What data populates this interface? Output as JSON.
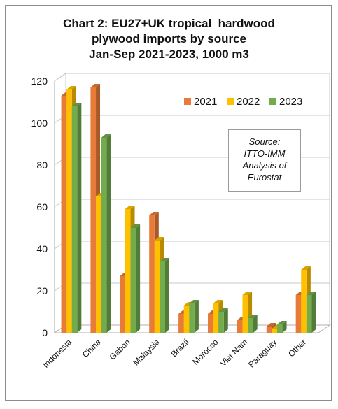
{
  "chart_data": {
    "type": "bar",
    "title_lines": [
      "Chart 2: EU27+UK tropical  hardwood",
      "plywood imports by source",
      "Jan-Sep 2021-2023, 1000 m3"
    ],
    "xlabel": "",
    "ylabel": "",
    "ylim": [
      0,
      120
    ],
    "yticks": [
      "0",
      "20",
      "40",
      "60",
      "80",
      "100",
      "120"
    ],
    "grid": true,
    "legend_position": "top-right",
    "categories": [
      "Indonesia",
      "China",
      "Gabon",
      "Malaysia",
      "Brazil",
      "Morocco",
      "Viet Nam",
      "Paraguay",
      "Other"
    ],
    "series": [
      {
        "name": "2021",
        "color": "#e87b37",
        "values": [
          113,
          117,
          27,
          56,
          9,
          9,
          6,
          3,
          18
        ]
      },
      {
        "name": "2022",
        "color": "#ffc000",
        "values": [
          116,
          65,
          59,
          44,
          13,
          14,
          18,
          2,
          30
        ]
      },
      {
        "name": "2023",
        "color": "#72ac4c",
        "values": [
          108,
          93,
          50,
          34,
          14,
          10,
          7,
          4,
          18
        ]
      }
    ],
    "annotation_lines": [
      "Source:",
      "ITTO-IMM",
      "Analysis of",
      "Eurostat"
    ]
  }
}
